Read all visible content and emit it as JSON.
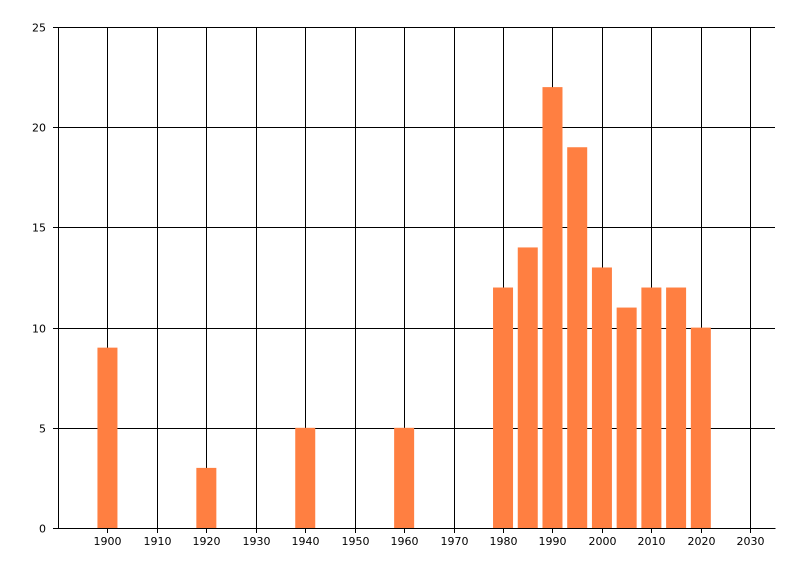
{
  "chart_data": {
    "type": "bar",
    "title": "",
    "xlabel": "",
    "ylabel": "",
    "x": [
      1900,
      1920,
      1940,
      1960,
      1980,
      1985,
      1990,
      1995,
      2000,
      2005,
      2010,
      2015,
      2020
    ],
    "values": [
      9,
      3,
      5,
      5,
      12,
      14,
      22,
      19,
      13,
      11,
      12,
      12,
      10
    ],
    "xlim": [
      1890,
      2035
    ],
    "ylim": [
      0,
      25
    ],
    "x_ticks": [
      "1900",
      "1910",
      "1920",
      "1930",
      "1940",
      "1950",
      "1960",
      "1970",
      "1980",
      "1990",
      "2000",
      "2010",
      "2020",
      "2030"
    ],
    "y_ticks": [
      "0",
      "5",
      "10",
      "15",
      "20",
      "25"
    ],
    "grid": true,
    "colors": {
      "bar": "#ff7f41",
      "grid": "#000000",
      "text": "#000000"
    }
  }
}
